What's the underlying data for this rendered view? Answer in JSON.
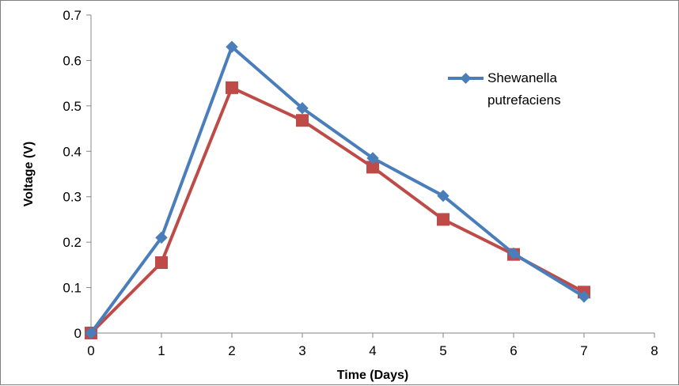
{
  "chart_data": {
    "type": "line",
    "title": "",
    "xlabel": "Time (Days)",
    "ylabel": "Voltage (V)",
    "xlim": [
      0,
      8
    ],
    "ylim": [
      0,
      0.7
    ],
    "x_ticks": [
      0,
      1,
      2,
      3,
      4,
      5,
      6,
      7,
      8
    ],
    "y_ticks": [
      0,
      0.1,
      0.2,
      0.3,
      0.4,
      0.5,
      0.6,
      0.7
    ],
    "grid": false,
    "legend_position": "top-right",
    "series": [
      {
        "name": "Shewanella putrefaciens",
        "legend_lines": [
          "Shewanella",
          "putrefaciens"
        ],
        "color": "#4a7ebb",
        "marker": "diamond",
        "x": [
          0,
          1,
          2,
          3,
          4,
          5,
          6,
          7
        ],
        "values": [
          0,
          0.21,
          0.63,
          0.495,
          0.385,
          0.302,
          0.175,
          0.08
        ]
      },
      {
        "color": "#be4b48",
        "marker": "square",
        "x": [
          0,
          1,
          2,
          3,
          4,
          5,
          6,
          7
        ],
        "values": [
          0,
          0.155,
          0.54,
          0.468,
          0.365,
          0.25,
          0.173,
          0.09
        ]
      }
    ]
  }
}
